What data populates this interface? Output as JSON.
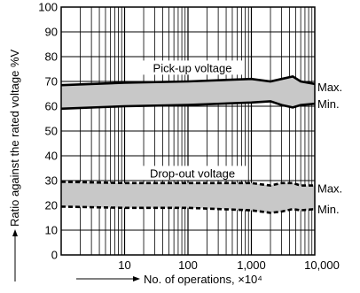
{
  "chart_data": {
    "type": "area",
    "title": "",
    "xlabel": "No. of operations, ×10⁴",
    "ylabel": "Ratio against the rated voltage %V",
    "x_scale": "log",
    "xlim": [
      1,
      10000
    ],
    "ylim": [
      0,
      100
    ],
    "x_ticks": [
      {
        "value": 10,
        "label": "10"
      },
      {
        "value": 100,
        "label": "100"
      },
      {
        "value": 1000,
        "label": "1,000"
      },
      {
        "value": 10000,
        "label": "10,000"
      }
    ],
    "y_ticks": [
      0,
      10,
      20,
      30,
      40,
      50,
      60,
      70,
      80,
      90,
      100
    ],
    "grid": true,
    "colors": {
      "band": "#c8c8c8",
      "line": "#000000",
      "grid": "#000000"
    },
    "bands": [
      {
        "name": "Pick-up voltage",
        "line_style": "solid",
        "upper": {
          "name": "Max.",
          "points": [
            [
              1,
              68.5
            ],
            [
              10,
              69.5
            ],
            [
              100,
              70
            ],
            [
              1000,
              71
            ],
            [
              2000,
              70
            ],
            [
              3000,
              71
            ],
            [
              4500,
              72
            ],
            [
              6000,
              70
            ],
            [
              10000,
              69
            ]
          ]
        },
        "lower": {
          "name": "Min.",
          "points": [
            [
              1,
              59
            ],
            [
              10,
              60
            ],
            [
              100,
              60.5
            ],
            [
              1000,
              61.5
            ],
            [
              2000,
              62
            ],
            [
              3000,
              60.5
            ],
            [
              4500,
              59.5
            ],
            [
              6000,
              60.5
            ],
            [
              10000,
              61
            ]
          ]
        }
      },
      {
        "name": "Drop-out voltage",
        "line_style": "dashed",
        "upper": {
          "name": "Max.",
          "points": [
            [
              1,
              29.5
            ],
            [
              10,
              29
            ],
            [
              100,
              29
            ],
            [
              1000,
              29
            ],
            [
              2000,
              28
            ],
            [
              3000,
              29
            ],
            [
              4500,
              29
            ],
            [
              6000,
              28
            ],
            [
              10000,
              28
            ]
          ]
        },
        "lower": {
          "name": "Min.",
          "points": [
            [
              1,
              19.5
            ],
            [
              10,
              19
            ],
            [
              100,
              19
            ],
            [
              1000,
              18
            ],
            [
              2000,
              17
            ],
            [
              3000,
              17.5
            ],
            [
              4500,
              18.5
            ],
            [
              6000,
              18
            ],
            [
              10000,
              18.5
            ]
          ]
        }
      }
    ]
  }
}
